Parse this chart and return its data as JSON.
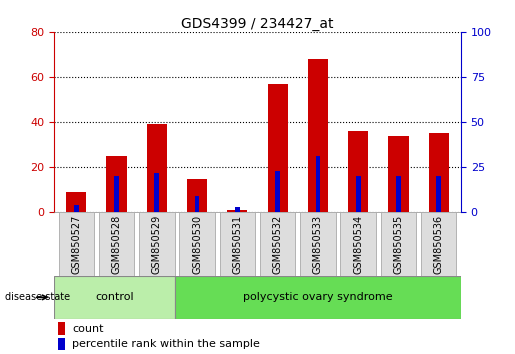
{
  "title": "GDS4399 / 234427_at",
  "samples": [
    "GSM850527",
    "GSM850528",
    "GSM850529",
    "GSM850530",
    "GSM850531",
    "GSM850532",
    "GSM850533",
    "GSM850534",
    "GSM850535",
    "GSM850536"
  ],
  "count_values": [
    9,
    25,
    39,
    15,
    1,
    57,
    68,
    36,
    34,
    35
  ],
  "percentile_values": [
    4,
    20,
    22,
    9,
    3,
    23,
    31,
    20,
    20,
    20
  ],
  "left_ylim": [
    0,
    80
  ],
  "right_ylim": [
    0,
    100
  ],
  "left_yticks": [
    0,
    20,
    40,
    60,
    80
  ],
  "right_yticks": [
    0,
    25,
    50,
    75,
    100
  ],
  "left_tick_color": "#cc0000",
  "right_tick_color": "#0000cc",
  "bar_color_count": "#cc0000",
  "bar_color_percentile": "#0000cc",
  "control_label": "control",
  "polycystic_label": "polycystic ovary syndrome",
  "control_bg": "#bbeeaa",
  "polycystic_bg": "#66dd55",
  "disease_state_label": "disease state",
  "legend_count_label": "count",
  "legend_percentile_label": "percentile rank within the sample",
  "bar_width": 0.5,
  "pct_bar_width": 0.12,
  "tick_label_fontsize": 7,
  "sample_box_bg": "#dddddd",
  "sample_box_edge": "#aaaaaa"
}
